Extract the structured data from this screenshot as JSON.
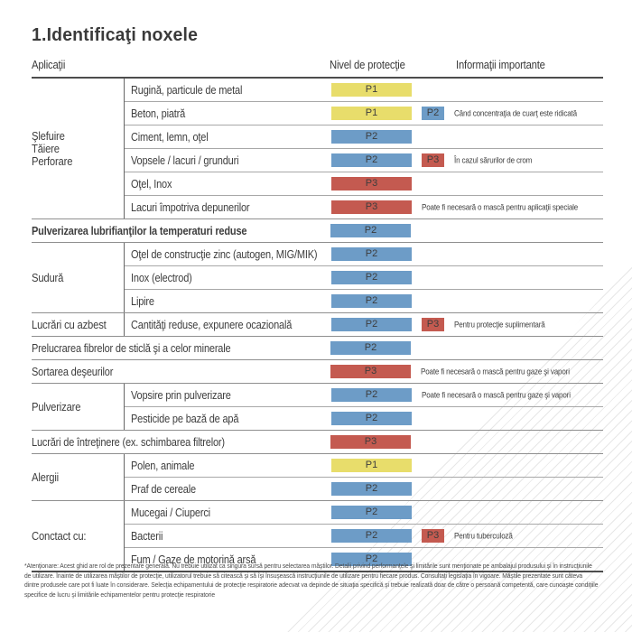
{
  "page": {
    "title": "1.Identificaţi noxele"
  },
  "table": {
    "headers": {
      "applications": "Aplicaţii",
      "protection": "Nivel de protecţie",
      "info": "Informaţii importante"
    },
    "level_colors": {
      "P1": "#e8dd6b",
      "P2": "#6d9cc7",
      "P3": "#c45a50"
    },
    "sections": [
      {
        "label": [
          "Şlefuire",
          "Tăiere",
          "Perforare"
        ],
        "rows": [
          {
            "text": "Rugină, particule de metal",
            "primary": "P1"
          },
          {
            "text": "Beton, piatră",
            "primary": "P1",
            "secondary": "P2",
            "note": "Când concentraţia de cuarţ este ridicată"
          },
          {
            "text": "Ciment, lemn, oţel",
            "primary": "P2"
          },
          {
            "text": "Vopsele / lacuri / grunduri",
            "primary": "P2",
            "secondary": "P3",
            "note": "În cazul sărurilor de crom"
          },
          {
            "text": "Oţel, Inox",
            "primary": "P3"
          },
          {
            "text": "Lacuri împotriva depunerilor",
            "primary": "P3",
            "note": "Poate fi necesară o mască pentru aplicaţii speciale"
          }
        ]
      },
      {
        "label": null,
        "rows": [
          {
            "text": "Pulverizarea lubrifianţilor la temperaturi reduse",
            "primary": "P2",
            "bold": true
          }
        ]
      },
      {
        "label": [
          "Sudură"
        ],
        "rows": [
          {
            "text": "Oţel de construcţie zinc (autogen, MIG/MIK)",
            "primary": "P2"
          },
          {
            "text": "Inox (electrod)",
            "primary": "P2"
          },
          {
            "text": "Lipire",
            "primary": "P2"
          }
        ]
      },
      {
        "label": [
          "Lucrări cu azbest"
        ],
        "rows": [
          {
            "text": "Cantităţi reduse, expunere ocazională",
            "primary": "P2",
            "secondary": "P3",
            "note": "Pentru protecţie suplimentară"
          }
        ]
      },
      {
        "label": null,
        "rows": [
          {
            "text": "Prelucrarea fibrelor de sticlă şi a celor minerale",
            "primary": "P2"
          }
        ]
      },
      {
        "label": null,
        "rows": [
          {
            "text": "Sortarea deşeurilor",
            "primary": "P3",
            "note": "Poate fi necesară o mască pentru gaze şi vapori"
          }
        ]
      },
      {
        "label": [
          "Pulverizare"
        ],
        "rows": [
          {
            "text": "Vopsire prin pulverizare",
            "primary": "P2",
            "note": "Poate fi necesară o mască pentru gaze şi vapori"
          },
          {
            "text": "Pesticide pe bază de apă",
            "primary": "P2"
          }
        ]
      },
      {
        "label": null,
        "rows": [
          {
            "text": "Lucrări de întreţinere (ex. schimbarea filtrelor)",
            "primary": "P3"
          }
        ]
      },
      {
        "label": [
          "Alergii"
        ],
        "rows": [
          {
            "text": "Polen, animale",
            "primary": "P1"
          },
          {
            "text": "Praf de cereale",
            "primary": "P2"
          }
        ]
      },
      {
        "label": [
          "Conctact cu:"
        ],
        "rows": [
          {
            "text": "Mucegai / Ciuperci",
            "primary": "P2"
          },
          {
            "text": "Bacterii",
            "primary": "P2",
            "secondary": "P3",
            "note": "Pentru tuberculoză"
          },
          {
            "text": "Fum / Gaze de motorină arsă",
            "primary": "P2"
          }
        ]
      }
    ]
  },
  "footnote": {
    "lines": [
      "*Atenţionare: Acest ghid are rol de prezentare generală. Nu trebuie utilizat ca singura sursă pentru selectarea măştilor. Detalii privind performanţele şi limitările sunt menţionate pe ambalajul produsului şi în instrucţiunile",
      "de utilizare. Înainte de utilizarea măştilor de protecţie, utilizatorul trebuie să citească şi să îşi însuşească instrucţiunile de utilizare pentru fiecare produs. Consultaţi legislaţia în vigoare. Măştile prezentate sunt câteva",
      "dintre produsele care pot fi luate în considerare. Selecţia echipamentului de protecţie respiratorie adecvat va depinde de situaţia specifică şi trebuie realizată doar de către o persoană competentă, care cunoaşte condiţiile",
      "specifice de lucru şi limitările echipamentelor pentru protecţie respiratorie"
    ]
  }
}
